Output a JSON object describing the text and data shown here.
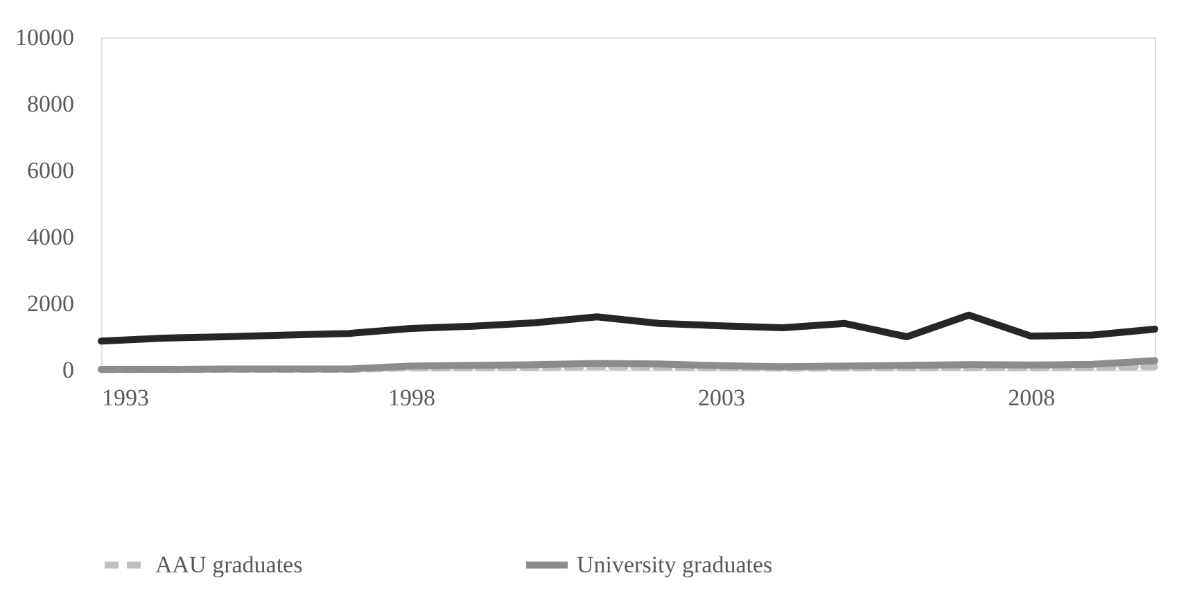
{
  "chart_data": {
    "type": "line",
    "x": [
      1993,
      1994,
      1995,
      1996,
      1997,
      1998,
      1999,
      2000,
      2001,
      2002,
      2003,
      2004,
      2005,
      2006,
      2007,
      2008,
      2009,
      2010
    ],
    "xlim": [
      1993,
      2010
    ],
    "xticks": [
      1993,
      1998,
      2003,
      2008
    ],
    "ylim": [
      0,
      10000
    ],
    "yticks": [
      0,
      2000,
      4000,
      6000,
      8000,
      10000
    ],
    "grid": false,
    "legend": "bottom",
    "marker": "none",
    "series": [
      {
        "color": "#262626",
        "line_style": "solid",
        "values": [
          870,
          960,
          1000,
          1050,
          1100,
          1250,
          1320,
          1420,
          1600,
          1400,
          1330,
          1270,
          1400,
          1000,
          1650,
          1020,
          1050,
          1230
        ]
      },
      {
        "name": "AAU graduates",
        "color": "#bfbfbf",
        "line_style": "dashed",
        "values": [
          10,
          10,
          20,
          20,
          20,
          60,
          70,
          80,
          100,
          90,
          70,
          50,
          60,
          70,
          80,
          70,
          80,
          100
        ]
      },
      {
        "name": "University graduates",
        "color": "#8c8c8c",
        "line_style": "solid",
        "values": [
          20,
          20,
          30,
          30,
          30,
          120,
          140,
          160,
          200,
          180,
          130,
          100,
          120,
          140,
          160,
          150,
          170,
          280
        ]
      }
    ]
  }
}
